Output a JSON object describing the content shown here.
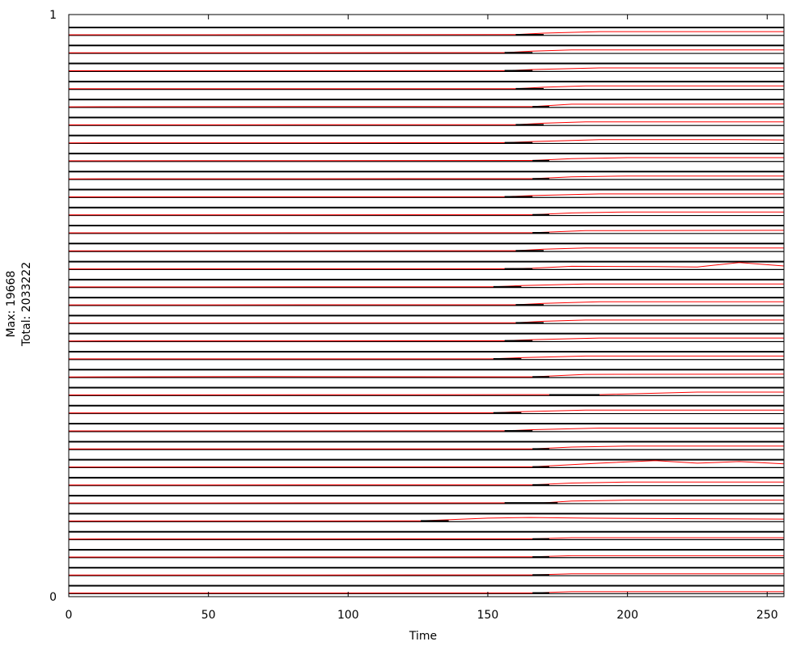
{
  "chart_data": {
    "type": "line",
    "xlabel": "Time",
    "ylabel_lines": [
      "Max: 19668",
      "Total: 2033222"
    ],
    "xlim": [
      0,
      256
    ],
    "ylim": [
      0,
      1
    ],
    "x_ticks": [
      0,
      50,
      100,
      150,
      200,
      250
    ],
    "y_ticks": [
      0,
      1
    ],
    "x_tick_labels": [
      "0",
      "50",
      "100",
      "150",
      "200",
      "250"
    ],
    "y_tick_labels": [
      "0",
      "1"
    ],
    "grid": false,
    "legend": "none",
    "colors": {
      "baseline": "#000000",
      "trace": "#ff0000",
      "axis": "#000000"
    },
    "lane_count": 32,
    "lanes": [
      {
        "baseline_x": [
          0,
          256
        ],
        "trace": [
          [
            0,
            0
          ],
          [
            160,
            0.02
          ],
          [
            170,
            0.25
          ],
          [
            190,
            0.5
          ],
          [
            256,
            0.5
          ]
        ],
        "seg": [
          160,
          170
        ]
      },
      {
        "baseline_x": [
          0,
          256
        ],
        "trace": [
          [
            0,
            0
          ],
          [
            156,
            0.02
          ],
          [
            166,
            0.25
          ],
          [
            180,
            0.45
          ],
          [
            256,
            0.45
          ]
        ],
        "seg": [
          156,
          166
        ]
      },
      {
        "baseline_x": [
          0,
          256
        ],
        "trace": [
          [
            0,
            0
          ],
          [
            156,
            0.02
          ],
          [
            166,
            0.2
          ],
          [
            190,
            0.45
          ],
          [
            256,
            0.45
          ]
        ],
        "seg": [
          156,
          166
        ]
      },
      {
        "baseline_x": [
          0,
          256
        ],
        "trace": [
          [
            0,
            0
          ],
          [
            160,
            0.02
          ],
          [
            170,
            0.25
          ],
          [
            185,
            0.45
          ],
          [
            256,
            0.45
          ]
        ],
        "seg": [
          160,
          170
        ]
      },
      {
        "baseline_x": [
          0,
          256
        ],
        "trace": [
          [
            0,
            0
          ],
          [
            110,
            0.05
          ],
          [
            166,
            0.02
          ],
          [
            180,
            0.4
          ],
          [
            256,
            0.45
          ]
        ],
        "seg": [
          166,
          172
        ]
      },
      {
        "baseline_x": [
          0,
          256
        ],
        "trace": [
          [
            0,
            0
          ],
          [
            160,
            0.02
          ],
          [
            170,
            0.25
          ],
          [
            185,
            0.45
          ],
          [
            256,
            0.45
          ]
        ],
        "seg": [
          160,
          170
        ]
      },
      {
        "baseline_x": [
          0,
          256
        ],
        "trace": [
          [
            0,
            0
          ],
          [
            156,
            0.02
          ],
          [
            166,
            0.2
          ],
          [
            190,
            0.5
          ],
          [
            240,
            0.5
          ],
          [
            256,
            0.45
          ]
        ],
        "seg": [
          156,
          166
        ]
      },
      {
        "baseline_x": [
          0,
          256
        ],
        "trace": [
          [
            0,
            0
          ],
          [
            166,
            0.05
          ],
          [
            180,
            0.35
          ],
          [
            200,
            0.5
          ],
          [
            256,
            0.5
          ]
        ],
        "seg": [
          166,
          172
        ]
      },
      {
        "baseline_x": [
          0,
          256
        ],
        "trace": [
          [
            0,
            0
          ],
          [
            166,
            0.02
          ],
          [
            180,
            0.3
          ],
          [
            200,
            0.45
          ],
          [
            256,
            0.45
          ]
        ],
        "seg": [
          166,
          172
        ]
      },
      {
        "baseline_x": [
          0,
          256
        ],
        "trace": [
          [
            0,
            0
          ],
          [
            156,
            0.02
          ],
          [
            166,
            0.2
          ],
          [
            190,
            0.45
          ],
          [
            256,
            0.45
          ]
        ],
        "seg": [
          156,
          166
        ]
      },
      {
        "baseline_x": [
          0,
          256
        ],
        "trace": [
          [
            0,
            0
          ],
          [
            166,
            0.02
          ],
          [
            180,
            0.3
          ],
          [
            200,
            0.45
          ],
          [
            256,
            0.45
          ]
        ],
        "seg": [
          166,
          172
        ]
      },
      {
        "baseline_x": [
          0,
          256
        ],
        "trace": [
          [
            0,
            0
          ],
          [
            80,
            0.02
          ],
          [
            150,
            0.02
          ],
          [
            166,
            0.02
          ],
          [
            185,
            0.35
          ],
          [
            256,
            0.4
          ]
        ],
        "seg": [
          166,
          172
        ]
      },
      {
        "baseline_x": [
          0,
          256
        ],
        "trace": [
          [
            0,
            0
          ],
          [
            160,
            0.02
          ],
          [
            170,
            0.25
          ],
          [
            185,
            0.45
          ],
          [
            256,
            0.45
          ]
        ],
        "seg": [
          160,
          170
        ]
      },
      {
        "baseline_x": [
          0,
          256
        ],
        "trace": [
          [
            0,
            0
          ],
          [
            156,
            0.02
          ],
          [
            166,
            0.1
          ],
          [
            180,
            0.4
          ],
          [
            210,
            0.35
          ],
          [
            225,
            0.3
          ],
          [
            240,
            1.0
          ],
          [
            256,
            0.45
          ]
        ],
        "seg": [
          156,
          166
        ]
      },
      {
        "baseline_x": [
          0,
          256
        ],
        "trace": [
          [
            0,
            0
          ],
          [
            152,
            0.02
          ],
          [
            162,
            0.2
          ],
          [
            185,
            0.45
          ],
          [
            256,
            0.45
          ]
        ],
        "seg": [
          152,
          162
        ]
      },
      {
        "baseline_x": [
          0,
          256
        ],
        "trace": [
          [
            0,
            0
          ],
          [
            160,
            0.02
          ],
          [
            170,
            0.25
          ],
          [
            190,
            0.5
          ],
          [
            256,
            0.5
          ]
        ],
        "seg": [
          160,
          170
        ]
      },
      {
        "baseline_x": [
          0,
          256
        ],
        "trace": [
          [
            0,
            0
          ],
          [
            160,
            0.02
          ],
          [
            170,
            0.25
          ],
          [
            185,
            0.45
          ],
          [
            256,
            0.45
          ]
        ],
        "seg": [
          160,
          170
        ]
      },
      {
        "baseline_x": [
          0,
          256
        ],
        "trace": [
          [
            0,
            0
          ],
          [
            156,
            0.02
          ],
          [
            166,
            0.2
          ],
          [
            190,
            0.45
          ],
          [
            256,
            0.45
          ]
        ],
        "seg": [
          156,
          166
        ]
      },
      {
        "baseline_x": [
          0,
          256
        ],
        "trace": [
          [
            0,
            0
          ],
          [
            152,
            0.02
          ],
          [
            162,
            0.2
          ],
          [
            185,
            0.45
          ],
          [
            256,
            0.45
          ]
        ],
        "seg": [
          152,
          162
        ]
      },
      {
        "baseline_x": [
          0,
          256
        ],
        "trace": [
          [
            0,
            0
          ],
          [
            70,
            0.05
          ],
          [
            160,
            0.02
          ],
          [
            166,
            0.02
          ],
          [
            185,
            0.4
          ],
          [
            256,
            0.45
          ]
        ],
        "seg": [
          166,
          172
        ]
      },
      {
        "baseline_x": [
          0,
          256
        ],
        "trace": [
          [
            0,
            0
          ],
          [
            172,
            0.05
          ],
          [
            190,
            0.05
          ],
          [
            225,
            0.45
          ],
          [
            240,
            0.45
          ],
          [
            256,
            0.45
          ]
        ],
        "seg": [
          172,
          190
        ]
      },
      {
        "baseline_x": [
          0,
          256
        ],
        "trace": [
          [
            0,
            0
          ],
          [
            152,
            0.02
          ],
          [
            162,
            0.2
          ],
          [
            185,
            0.45
          ],
          [
            256,
            0.45
          ]
        ],
        "seg": [
          152,
          162
        ]
      },
      {
        "baseline_x": [
          0,
          256
        ],
        "trace": [
          [
            0,
            0
          ],
          [
            156,
            0.02
          ],
          [
            166,
            0.2
          ],
          [
            190,
            0.45
          ],
          [
            256,
            0.45
          ]
        ],
        "seg": [
          156,
          166
        ]
      },
      {
        "baseline_x": [
          0,
          256
        ],
        "trace": [
          [
            0,
            0
          ],
          [
            166,
            0.02
          ],
          [
            180,
            0.3
          ],
          [
            200,
            0.45
          ],
          [
            256,
            0.45
          ]
        ],
        "seg": [
          166,
          172
        ]
      },
      {
        "baseline_x": [
          0,
          256
        ],
        "trace": [
          [
            0,
            0
          ],
          [
            166,
            0.02
          ],
          [
            190,
            0.6
          ],
          [
            210,
            1.0
          ],
          [
            225,
            0.6
          ],
          [
            240,
            0.85
          ],
          [
            256,
            0.5
          ]
        ],
        "seg": [
          166,
          172
        ]
      },
      {
        "baseline_x": [
          0,
          256
        ],
        "trace": [
          [
            0,
            0
          ],
          [
            166,
            0.02
          ],
          [
            180,
            0.3
          ],
          [
            200,
            0.45
          ],
          [
            256,
            0.45
          ]
        ],
        "seg": [
          166,
          172
        ]
      },
      {
        "baseline_x": [
          0,
          256
        ],
        "trace": [
          [
            0,
            0
          ],
          [
            156,
            0.02
          ],
          [
            170,
            0.02
          ],
          [
            180,
            0.3
          ],
          [
            200,
            0.45
          ],
          [
            256,
            0.45
          ]
        ],
        "seg": [
          156,
          175
        ]
      },
      {
        "baseline_x": [
          0,
          256
        ],
        "trace": [
          [
            0,
            0
          ],
          [
            126,
            0.02
          ],
          [
            150,
            0.45
          ],
          [
            165,
            0.55
          ],
          [
            185,
            0.45
          ],
          [
            256,
            0.3
          ]
        ],
        "seg": [
          126,
          136
        ]
      },
      {
        "baseline_x": [
          0,
          256
        ],
        "trace": [
          [
            0,
            0
          ],
          [
            166,
            0.02
          ],
          [
            180,
            0.2
          ],
          [
            256,
            0.2
          ]
        ],
        "seg": [
          166,
          172
        ]
      },
      {
        "baseline_x": [
          0,
          256
        ],
        "trace": [
          [
            0,
            0
          ],
          [
            166,
            0.02
          ],
          [
            180,
            0.2
          ],
          [
            256,
            0.2
          ]
        ],
        "seg": [
          166,
          172
        ]
      },
      {
        "baseline_x": [
          0,
          256
        ],
        "trace": [
          [
            0,
            0
          ],
          [
            166,
            0.02
          ],
          [
            180,
            0.2
          ],
          [
            256,
            0.2
          ]
        ],
        "seg": [
          166,
          172
        ]
      },
      {
        "baseline_x": [
          0,
          256
        ],
        "trace": [
          [
            0,
            0
          ],
          [
            166,
            0.02
          ],
          [
            180,
            0.2
          ],
          [
            256,
            0.2
          ]
        ],
        "seg": [
          166,
          172
        ]
      }
    ]
  }
}
